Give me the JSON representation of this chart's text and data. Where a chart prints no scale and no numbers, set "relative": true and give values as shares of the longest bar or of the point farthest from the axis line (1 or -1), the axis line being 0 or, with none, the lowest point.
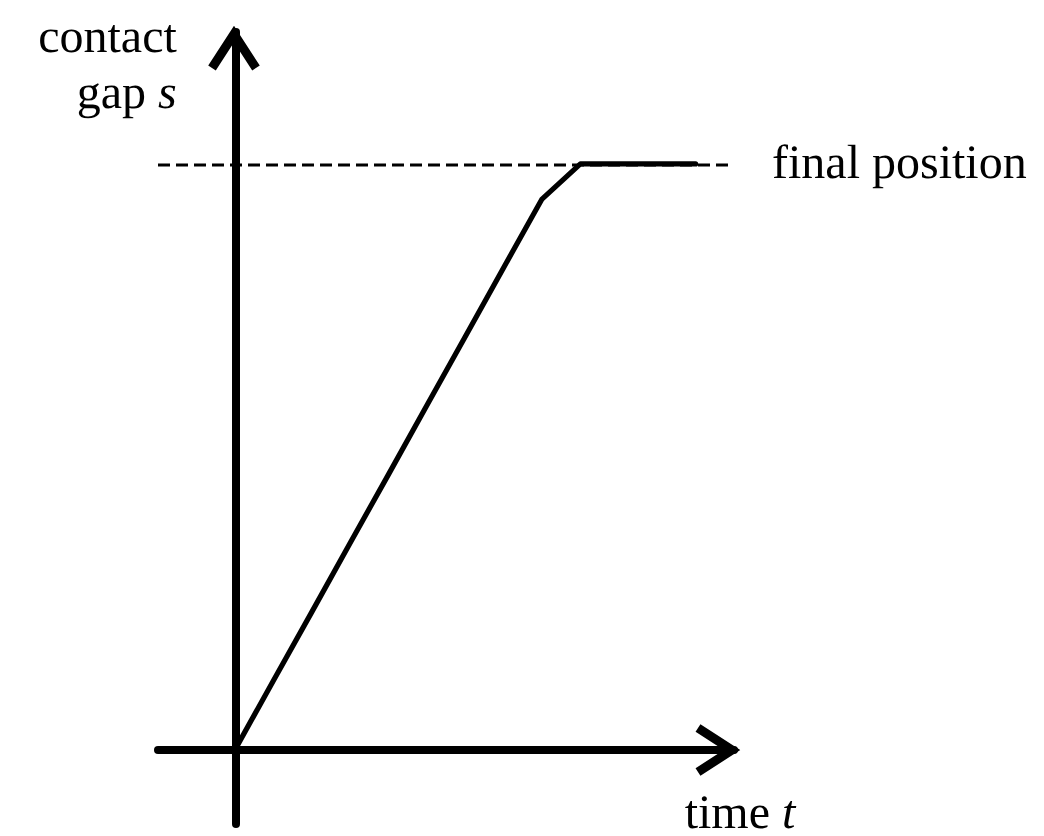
{
  "chart_data": {
    "type": "line",
    "xlabel": "time t",
    "ylabel": "contact gap s",
    "relative": true,
    "categories": [
      null,
      null,
      null,
      null,
      null,
      null,
      null,
      null,
      null,
      null,
      null,
      null,
      null
    ],
    "series": [
      {
        "color": "#000000",
        "values": [
          0,
          0.118,
          0.235,
          0.353,
          0.47,
          0.588,
          0.705,
          0.823,
          0.94,
          1,
          1,
          1,
          1
        ]
      }
    ],
    "ref_lines": [
      {
        "axis": "y",
        "value": 1,
        "label": "final position",
        "color": "#000000",
        "line_style": "dashed"
      }
    ]
  }
}
